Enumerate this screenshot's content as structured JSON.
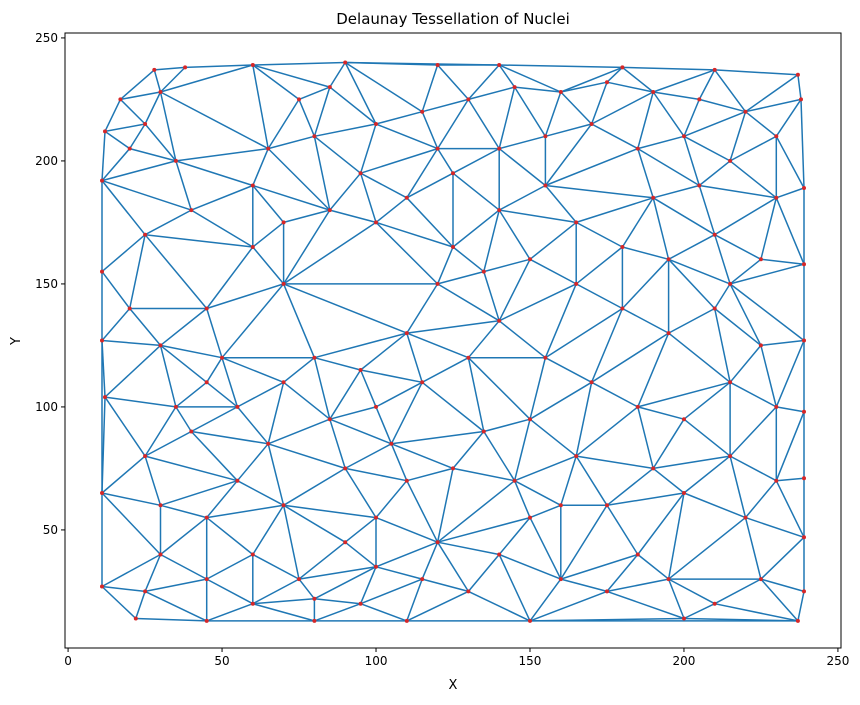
{
  "chart_data": {
    "type": "scatter",
    "title": "Delaunay Tessellation of Nuclei",
    "xlabel": "X",
    "ylabel": "Y",
    "xlim": [
      -1,
      251
    ],
    "ylim": [
      2,
      252
    ],
    "xticks": [
      0,
      50,
      100,
      150,
      200,
      250
    ],
    "yticks": [
      50,
      100,
      150,
      200,
      250
    ],
    "xtick_labels": [
      "0",
      "50",
      "100",
      "150",
      "200",
      "250"
    ],
    "ytick_labels": [
      "50",
      "100",
      "150",
      "200",
      "250"
    ],
    "grid": false,
    "legend": "none",
    "edge_color": "#1f77b4",
    "point_color": "#d62728",
    "points_note_sample": [
      [
        11,
        192
      ],
      [
        11,
        155
      ],
      [
        11,
        127
      ],
      [
        12,
        104
      ],
      [
        11,
        65
      ],
      [
        11,
        27
      ],
      [
        22,
        14
      ],
      [
        45,
        13
      ],
      [
        80,
        13
      ],
      [
        110,
        13
      ],
      [
        150,
        13
      ],
      [
        200,
        14
      ],
      [
        237,
        13
      ],
      [
        239,
        25
      ],
      [
        239,
        47
      ],
      [
        239,
        71
      ],
      [
        239,
        98
      ],
      [
        239,
        127
      ],
      [
        239,
        158
      ],
      [
        239,
        189
      ],
      [
        238,
        225
      ],
      [
        237,
        235
      ],
      [
        210,
        237
      ],
      [
        180,
        238
      ],
      [
        140,
        239
      ],
      [
        120,
        239
      ],
      [
        90,
        240
      ],
      [
        60,
        239
      ],
      [
        38,
        238
      ],
      [
        28,
        237
      ],
      [
        17,
        225
      ],
      [
        12,
        212
      ],
      [
        20,
        205
      ],
      [
        25,
        215
      ],
      [
        30,
        228
      ],
      [
        35,
        200
      ],
      [
        40,
        180
      ],
      [
        25,
        170
      ],
      [
        20,
        140
      ],
      [
        30,
        125
      ],
      [
        45,
        140
      ],
      [
        50,
        120
      ],
      [
        55,
        100
      ],
      [
        40,
        90
      ],
      [
        25,
        80
      ],
      [
        30,
        60
      ],
      [
        45,
        55
      ],
      [
        55,
        70
      ],
      [
        65,
        85
      ],
      [
        70,
        60
      ],
      [
        60,
        40
      ],
      [
        45,
        30
      ],
      [
        30,
        40
      ],
      [
        25,
        25
      ],
      [
        60,
        20
      ],
      [
        75,
        30
      ],
      [
        80,
        22
      ],
      [
        95,
        20
      ],
      [
        100,
        35
      ],
      [
        115,
        30
      ],
      [
        120,
        45
      ],
      [
        130,
        25
      ],
      [
        140,
        40
      ],
      [
        150,
        55
      ],
      [
        160,
        30
      ],
      [
        175,
        25
      ],
      [
        185,
        40
      ],
      [
        195,
        30
      ],
      [
        210,
        20
      ],
      [
        225,
        30
      ],
      [
        220,
        55
      ],
      [
        230,
        70
      ],
      [
        215,
        80
      ],
      [
        200,
        65
      ],
      [
        190,
        75
      ],
      [
        175,
        60
      ],
      [
        165,
        80
      ],
      [
        150,
        95
      ],
      [
        135,
        90
      ],
      [
        125,
        75
      ],
      [
        110,
        70
      ],
      [
        100,
        55
      ],
      [
        90,
        75
      ],
      [
        85,
        95
      ],
      [
        100,
        100
      ],
      [
        115,
        110
      ],
      [
        130,
        120
      ],
      [
        140,
        135
      ],
      [
        155,
        120
      ],
      [
        170,
        110
      ],
      [
        185,
        100
      ],
      [
        200,
        95
      ],
      [
        215,
        110
      ],
      [
        230,
        100
      ],
      [
        225,
        125
      ],
      [
        210,
        140
      ],
      [
        195,
        130
      ],
      [
        180,
        140
      ],
      [
        165,
        150
      ],
      [
        150,
        160
      ],
      [
        135,
        155
      ],
      [
        120,
        150
      ],
      [
        110,
        130
      ],
      [
        125,
        165
      ],
      [
        140,
        180
      ],
      [
        155,
        190
      ],
      [
        165,
        175
      ],
      [
        180,
        165
      ],
      [
        195,
        160
      ],
      [
        210,
        170
      ],
      [
        225,
        160
      ],
      [
        230,
        185
      ],
      [
        215,
        200
      ],
      [
        200,
        210
      ],
      [
        185,
        205
      ],
      [
        170,
        215
      ],
      [
        155,
        210
      ],
      [
        140,
        205
      ],
      [
        125,
        195
      ],
      [
        110,
        185
      ],
      [
        100,
        175
      ],
      [
        85,
        180
      ],
      [
        70,
        175
      ],
      [
        60,
        190
      ],
      [
        65,
        205
      ],
      [
        80,
        210
      ],
      [
        75,
        225
      ],
      [
        85,
        230
      ],
      [
        100,
        215
      ],
      [
        115,
        220
      ],
      [
        130,
        225
      ],
      [
        145,
        230
      ],
      [
        160,
        228
      ],
      [
        175,
        232
      ],
      [
        190,
        228
      ],
      [
        205,
        225
      ],
      [
        220,
        220
      ],
      [
        230,
        210
      ],
      [
        120,
        205
      ],
      [
        95,
        195
      ],
      [
        70,
        150
      ],
      [
        60,
        165
      ],
      [
        80,
        120
      ],
      [
        95,
        115
      ],
      [
        105,
        85
      ],
      [
        70,
        110
      ],
      [
        190,
        185
      ],
      [
        205,
        190
      ],
      [
        215,
        150
      ],
      [
        160,
        60
      ],
      [
        145,
        70
      ],
      [
        90,
        45
      ],
      [
        45,
        110
      ],
      [
        35,
        100
      ]
    ]
  }
}
